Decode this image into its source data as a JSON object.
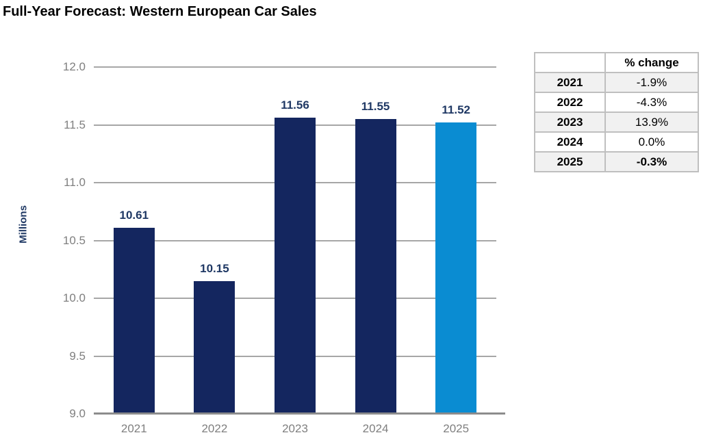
{
  "title": "Full-Year Forecast: Western European Car Sales",
  "colors": {
    "bar_navy": "#14265F",
    "bar_blue": "#0A8CD2",
    "data_label": "#1F3864",
    "gridline": "#A6A6A6",
    "axis_line": "#8C8C8C",
    "axis_text": "#7F7F7F",
    "table_border": "#BFBFBF",
    "table_stripe": "#F1F1F1"
  },
  "chart_data": {
    "type": "bar",
    "title": "Full-Year Forecast: Western European Car Sales",
    "categories": [
      "2021",
      "2022",
      "2023",
      "2024",
      "2025"
    ],
    "values": [
      10.61,
      10.15,
      11.56,
      11.55,
      11.52
    ],
    "value_labels": [
      "10.61",
      "10.15",
      "11.56",
      "11.55",
      "11.52"
    ],
    "bar_color_keys": [
      "bar_navy",
      "bar_navy",
      "bar_navy",
      "bar_navy",
      "bar_blue"
    ],
    "xlabel": "",
    "ylabel": "Millions",
    "ylim": [
      9.0,
      12.0
    ],
    "ytick_labels": [
      "12.0",
      "11.5",
      "11.0",
      "10.5",
      "10.0",
      "9.5",
      "9.0"
    ],
    "grid": true,
    "legend": false
  },
  "table": {
    "header": {
      "year": "",
      "value": "% change"
    },
    "rows": [
      {
        "year": "2021",
        "change": "-1.9%",
        "bold_value": false
      },
      {
        "year": "2022",
        "change": "-4.3%",
        "bold_value": false
      },
      {
        "year": "2023",
        "change": "13.9%",
        "bold_value": false
      },
      {
        "year": "2024",
        "change": "0.0%",
        "bold_value": false
      },
      {
        "year": "2025",
        "change": "-0.3%",
        "bold_value": true
      }
    ]
  }
}
